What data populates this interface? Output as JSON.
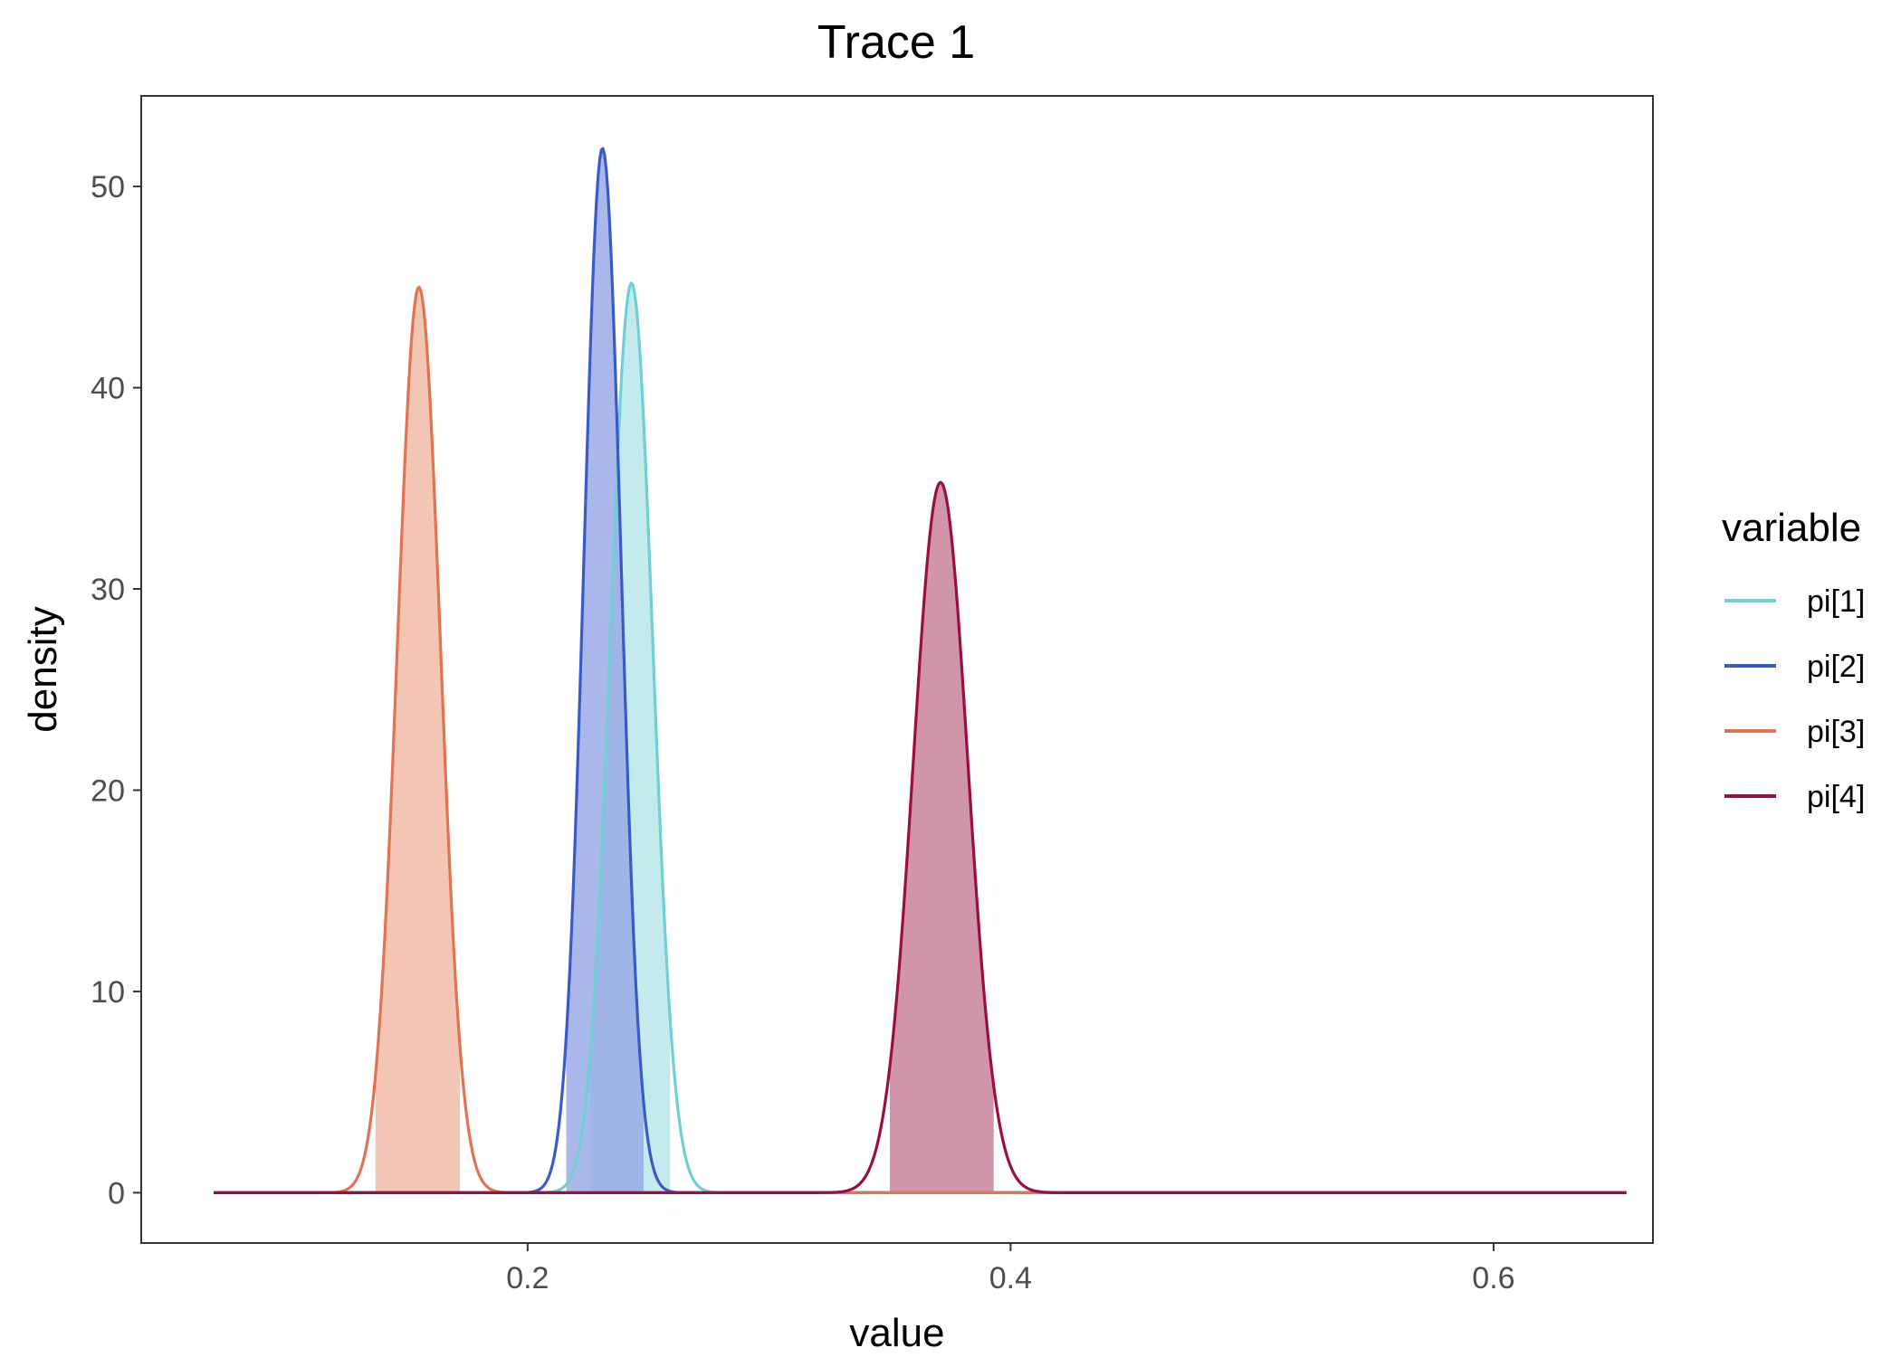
{
  "chart_data": {
    "type": "density",
    "title": "Trace 1",
    "xlabel": "value",
    "ylabel": "density",
    "xlim": [
      0.04,
      0.666
    ],
    "ylim": [
      -2.5,
      54.5
    ],
    "xticks": [
      0.2,
      0.4,
      0.6
    ],
    "xtick_labels": [
      "0.2",
      "0.4",
      "0.6"
    ],
    "yticks": [
      0,
      10,
      20,
      30,
      40,
      50
    ],
    "ytick_labels": [
      "0",
      "10",
      "20",
      "30",
      "40",
      "50"
    ],
    "grid": false,
    "legend": {
      "title": "variable",
      "position": "right"
    },
    "x_range": [
      0.07,
      0.655
    ],
    "series": [
      {
        "name": "pi[1]",
        "color": "#6fcfd4",
        "peak_x": 0.243,
        "peak_density": 45.2,
        "sd": 0.0088,
        "shade_interval": [
          0.226,
          0.259
        ],
        "fill_color": "#b9e8ea"
      },
      {
        "name": "pi[2]",
        "color": "#3a5bc7",
        "peak_x": 0.231,
        "peak_density": 51.9,
        "sd": 0.0077,
        "shade_interval": [
          0.216,
          0.248
        ],
        "fill_color": "#9aaae6"
      },
      {
        "name": "pi[3]",
        "color": "#e07451",
        "peak_x": 0.155,
        "peak_density": 45.0,
        "sd": 0.0089,
        "shade_interval": [
          0.137,
          0.172
        ],
        "fill_color": "#f0bba8"
      },
      {
        "name": "pi[4]",
        "color": "#9b0f3e",
        "peak_x": 0.371,
        "peak_density": 35.3,
        "sd": 0.0113,
        "shade_interval": [
          0.35,
          0.393
        ],
        "fill_color": "#c9839b"
      }
    ]
  }
}
